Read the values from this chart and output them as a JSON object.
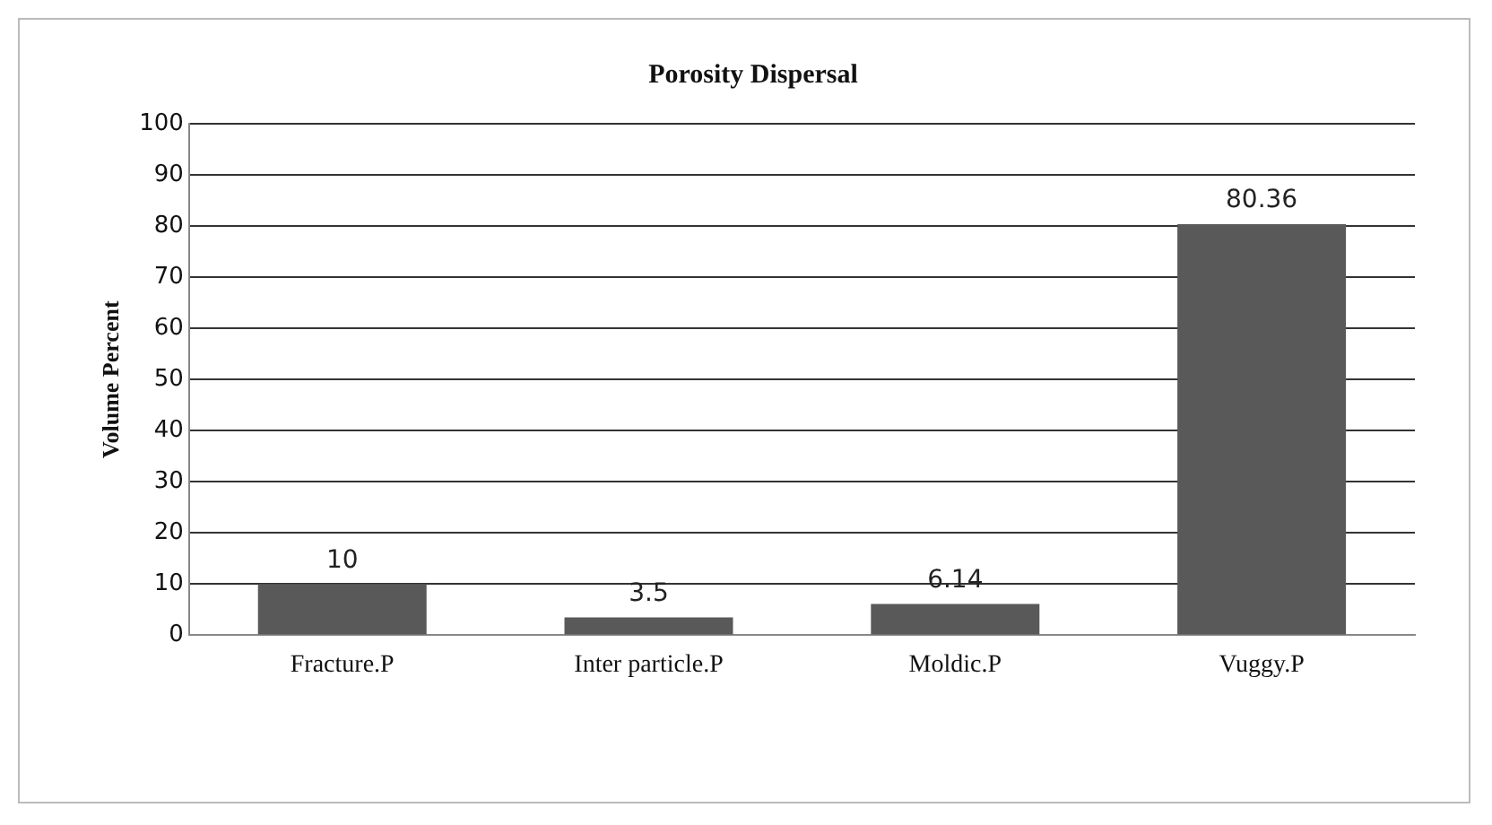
{
  "chart_data": {
    "type": "bar",
    "title": "Porosity Dispersal",
    "ylabel": "Volume Percent",
    "categories": [
      "Fracture.P",
      "Inter particle.P",
      "Moldic.P",
      "Vuggy.P"
    ],
    "values": [
      10,
      3.5,
      6.14,
      80.36
    ],
    "color": "#595959",
    "ylim": [
      0,
      100
    ],
    "yticks": [
      0,
      10,
      20,
      30,
      40,
      50,
      60,
      70,
      80,
      90,
      100
    ],
    "grid": "y",
    "legend": false,
    "data_labels": true
  }
}
